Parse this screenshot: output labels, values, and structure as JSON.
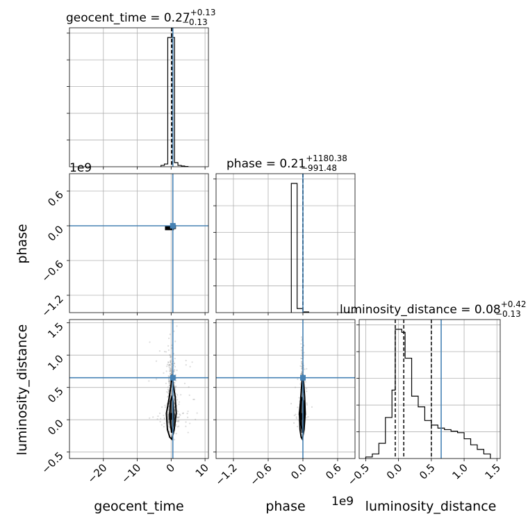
{
  "chart_data": {
    "type": "corner",
    "parameters": [
      "geocent_time",
      "phase",
      "luminosity_distance"
    ],
    "offset_text": {
      "phase": "1e9",
      "luminosity_distance": "1e9"
    },
    "grid": true,
    "titles": {
      "geocent_time": {
        "prefix": "geocent_time = ",
        "median": "0.27",
        "plus": "+0.13",
        "minus": "−0.13"
      },
      "phase": {
        "prefix": "phase = ",
        "median": "0.21",
        "plus": "+1180.38",
        "minus": "−991.48"
      },
      "luminosity_distance": {
        "prefix": "luminosity_distance = ",
        "median": "0.08",
        "plus": "+0.42",
        "minus": "−0.13"
      }
    },
    "ranges": {
      "geocent_time": [
        -30,
        11
      ],
      "phase": [
        -1.5,
        0.9
      ],
      "luminosity_distance": [
        -0.6,
        1.55
      ]
    },
    "ticks": {
      "geocent_time": {
        "values": [
          -20,
          -10,
          0,
          10
        ],
        "labels": [
          "−20",
          "−10",
          "0",
          "10"
        ]
      },
      "phase": {
        "values": [
          -1.2,
          -0.6,
          0.0,
          0.6
        ],
        "labels": [
          "−1.2",
          "−0.6",
          "0.0",
          "0.6"
        ]
      },
      "luminosity_distance_x": {
        "values": [
          -0.5,
          0.0,
          0.5,
          1.0,
          1.5
        ],
        "labels": [
          "−0.5",
          "0.0",
          "0.5",
          "1.0",
          "1.5"
        ]
      },
      "luminosity_distance_y": {
        "values": [
          -0.5,
          0.0,
          0.5,
          1.0,
          1.5
        ],
        "labels": [
          "−0.5",
          "0.0",
          "0.5",
          "1.0",
          "1.5"
        ]
      }
    },
    "truths": {
      "geocent_time": 0.5,
      "phase": 0.0,
      "luminosity_distance": 0.65
    },
    "quantiles": {
      "geocent_time": [
        0.14,
        0.27,
        0.4
      ],
      "phase": [
        -0.00099,
        2e-07,
        0.00118
      ],
      "luminosity_distance": [
        -0.05,
        0.08,
        0.5
      ]
    },
    "histograms": {
      "geocent_time": {
        "bin_edges": [
          -3,
          -2,
          -1,
          0,
          1,
          2,
          3,
          4,
          5
        ],
        "counts": [
          0.01,
          0.02,
          0.95,
          0.95,
          0.03,
          0.01,
          0.005,
          0.002
        ]
      },
      "phase": {
        "bin_edges": [
          -0.2,
          -0.1,
          0.0,
          0.1
        ],
        "counts": [
          0.95,
          0.03,
          0.005
        ]
      },
      "luminosity_distance": {
        "bin_edges": [
          -0.5,
          -0.4,
          -0.3,
          -0.2,
          -0.1,
          -0.05,
          0.05,
          0.1,
          0.2,
          0.3,
          0.4,
          0.5,
          0.6,
          0.7,
          0.8,
          0.9,
          1.0,
          1.1,
          1.2,
          1.3,
          1.4
        ],
        "counts": [
          0.01,
          0.03,
          0.1,
          0.27,
          0.45,
          0.85,
          0.83,
          0.66,
          0.41,
          0.34,
          0.25,
          0.22,
          0.2,
          0.19,
          0.18,
          0.17,
          0.13,
          0.09,
          0.06,
          0.03
        ]
      }
    },
    "contours": [
      {
        "x_param": "geocent_time",
        "y_param": "luminosity_distance",
        "center_x": 0.2,
        "levels": [
          [
            [
              0.2,
              -0.3
            ],
            [
              0.9,
              -0.15
            ],
            [
              1.5,
              0.1
            ],
            [
              1.2,
              0.35
            ],
            [
              0.6,
              0.55
            ],
            [
              0.3,
              0.7
            ],
            [
              0.0,
              0.55
            ],
            [
              -0.7,
              0.3
            ],
            [
              -1.4,
              0.1
            ],
            [
              -1.1,
              -0.15
            ],
            [
              -0.4,
              -0.27
            ],
            [
              0.2,
              -0.3
            ]
          ],
          [
            [
              0.2,
              -0.2
            ],
            [
              0.6,
              -0.08
            ],
            [
              0.8,
              0.1
            ],
            [
              0.6,
              0.28
            ],
            [
              0.2,
              0.35
            ],
            [
              -0.2,
              0.28
            ],
            [
              -0.4,
              0.1
            ],
            [
              -0.2,
              -0.08
            ],
            [
              0.2,
              -0.2
            ]
          ]
        ]
      },
      {
        "x_param": "phase",
        "y_param": "luminosity_distance",
        "center_x": -0.01,
        "levels": [
          [
            [
              -0.01,
              -0.3
            ],
            [
              0.02,
              -0.15
            ],
            [
              0.04,
              0.1
            ],
            [
              0.03,
              0.35
            ],
            [
              0.015,
              0.55
            ],
            [
              0.0,
              0.7
            ],
            [
              -0.02,
              0.55
            ],
            [
              -0.04,
              0.3
            ],
            [
              -0.06,
              0.1
            ],
            [
              -0.05,
              -0.15
            ],
            [
              -0.03,
              -0.27
            ],
            [
              -0.01,
              -0.3
            ]
          ],
          [
            [
              -0.01,
              -0.2
            ],
            [
              0.01,
              -0.08
            ],
            [
              0.02,
              0.1
            ],
            [
              0.01,
              0.28
            ],
            [
              -0.01,
              0.35
            ],
            [
              -0.03,
              0.28
            ],
            [
              -0.04,
              0.1
            ],
            [
              -0.03,
              -0.08
            ],
            [
              -0.01,
              -0.2
            ]
          ]
        ]
      }
    ],
    "phase_vs_geocent_density": [
      {
        "x": -0.5,
        "y": -0.04,
        "w": 1.6
      },
      {
        "x": 0.6,
        "y": -0.02,
        "w": 1.0
      }
    ]
  }
}
